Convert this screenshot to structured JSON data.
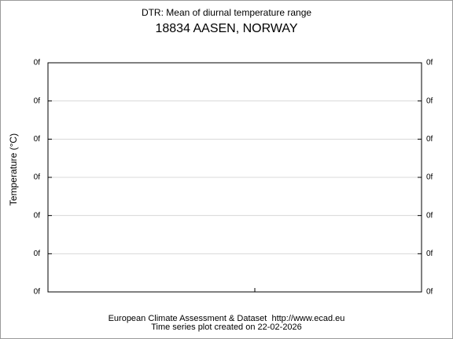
{
  "chart_data": {
    "type": "line",
    "title": "DTR: Mean of diurnal temperature range",
    "subtitle": "18834 AASEN, NORWAY",
    "ylabel": "Temperature (°C)",
    "footer": [
      "European Climate Assessment & Dataset  http://www.ecad.eu",
      "Time series plot created on 22-02-2026"
    ],
    "ylim": [
      0,
      6
    ],
    "yticks": [
      {
        "value": 0,
        "label": "0f"
      },
      {
        "value": 1,
        "label": "0f"
      },
      {
        "value": 2,
        "label": "0f"
      },
      {
        "value": 3,
        "label": "0f"
      },
      {
        "value": 4,
        "label": "0f"
      },
      {
        "value": 5,
        "label": "0f"
      },
      {
        "value": 6,
        "label": "0f"
      }
    ],
    "grid": true
  }
}
